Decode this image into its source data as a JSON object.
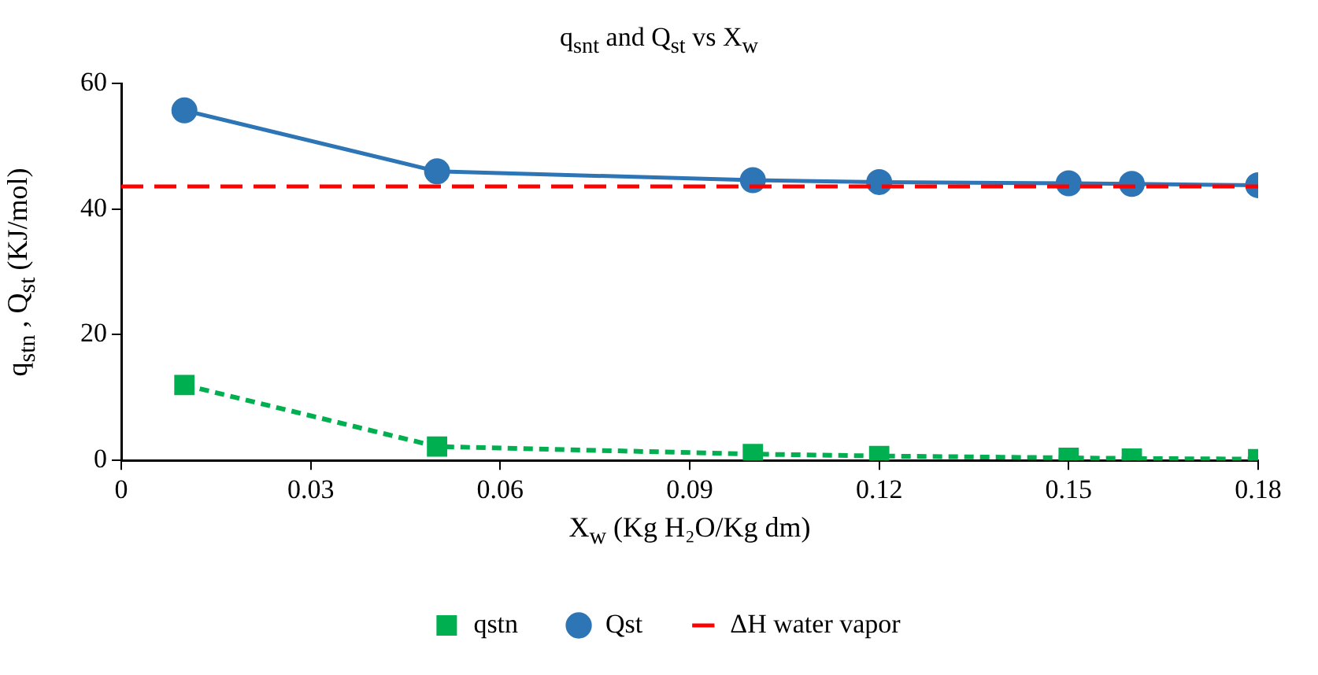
{
  "chart_data": {
    "type": "line",
    "title": "q$_{snt}$ and Q$_{st}$ vs X$_{w}$",
    "xlabel": "X$_{w}$ (Kg H₂O/Kg dm)",
    "ylabel": "q$_{stn}$ , Q$_{st}$ (KJ/mol)",
    "x": [
      0.01,
      0.05,
      0.1,
      0.12,
      0.15,
      0.16,
      0.18
    ],
    "series": [
      {
        "name": "qstn",
        "color": "#00b050",
        "marker": "square",
        "line_style": "dashed",
        "values": [
          12,
          2.2,
          1.0,
          0.7,
          0.4,
          0.3,
          0.2
        ]
      },
      {
        "name": "Qst",
        "color": "#2e75b6",
        "marker": "circle",
        "line_style": "solid",
        "values": [
          55.7,
          46,
          44.6,
          44.3,
          44.1,
          44.0,
          43.8
        ]
      },
      {
        "name": "ΔH water vapor",
        "color": "#ff0000",
        "marker": "none",
        "line_style": "dashed",
        "x": [
          0,
          0.18
        ],
        "values": [
          43.6,
          43.6
        ]
      }
    ],
    "xlim": [
      0,
      0.18
    ],
    "xticks": [
      0,
      0.03,
      0.06,
      0.09,
      0.12,
      0.15,
      0.18
    ],
    "ylim": [
      0,
      60
    ],
    "yticks": [
      0,
      20,
      40,
      60
    ],
    "grid": false,
    "legend": "bottom"
  }
}
